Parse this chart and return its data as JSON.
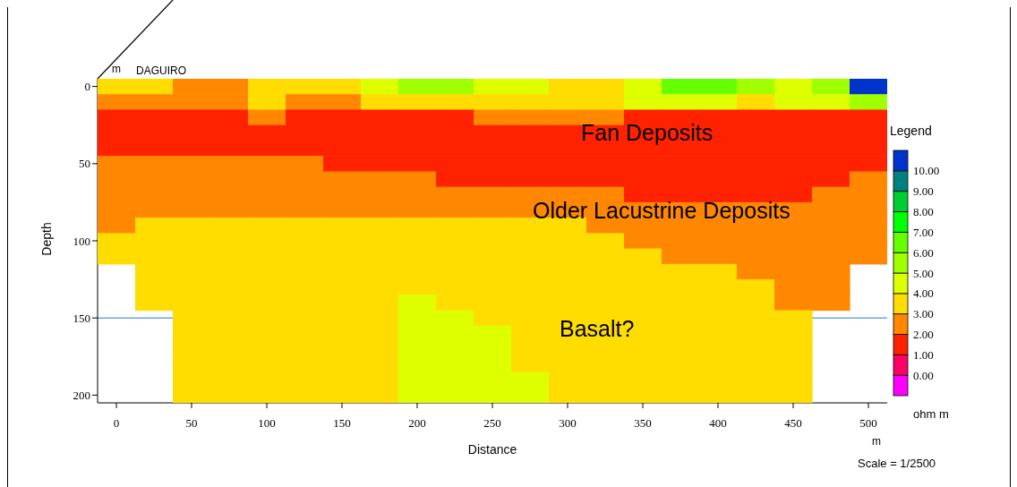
{
  "chart_data": {
    "type": "heatmap",
    "xlabel": "Distance",
    "ylabel": "Depth",
    "legend_title": "Legend",
    "clabel": "ohm m",
    "categories": [
      "0",
      null,
      "50",
      null,
      "100",
      null,
      "150",
      null,
      "200",
      null,
      "250",
      null,
      "300",
      null,
      "350",
      null,
      "400",
      null,
      "450",
      null,
      "500"
    ],
    "y_categories": [
      "0",
      null,
      null,
      null,
      null,
      "50",
      null,
      null,
      null,
      null,
      "100",
      null,
      null,
      null,
      null,
      "150",
      null,
      null,
      null,
      null,
      "200"
    ],
    "clim": [
      -1,
      11
    ],
    "cticks": [
      {
        "value": 0,
        "label": "0.00"
      },
      {
        "value": 1,
        "label": "1.00"
      },
      {
        "value": 2,
        "label": "2.00"
      },
      {
        "value": 3,
        "label": "3.00"
      },
      {
        "value": 4,
        "label": "4.00"
      },
      {
        "value": 5,
        "label": "5.00"
      },
      {
        "value": 6,
        "label": "6.00"
      },
      {
        "value": 7,
        "label": "7.00"
      },
      {
        "value": 8,
        "label": "8.00"
      },
      {
        "value": 9,
        "label": "9.00"
      },
      {
        "value": 10,
        "label": "10.00"
      }
    ],
    "colors": [
      "#ff00ff",
      "#ff0066",
      "#ff2200",
      "#ff8800",
      "#ffdd00",
      "#ddff00",
      "#a0ff00",
      "#66ff00",
      "#00ff00",
      "#00cc33",
      "#008080",
      "#0033cc"
    ],
    "cells": [
      [
        3.5,
        3.5,
        2.5,
        2.5,
        3.5,
        3.5,
        3.5,
        4.5,
        5.5,
        5.5,
        4.5,
        4.5,
        3.5,
        3.5,
        4.5,
        6.5,
        6.5,
        5.5,
        4.5,
        5.5,
        10.5
      ],
      [
        2.5,
        2.5,
        2.5,
        2.5,
        3.5,
        2.5,
        2.5,
        3.5,
        3.5,
        3.5,
        3.5,
        3.5,
        3.5,
        3.5,
        4.5,
        4.5,
        4.5,
        3.5,
        4.5,
        4.5,
        5.5
      ],
      [
        1.5,
        1.5,
        1.5,
        1.5,
        2.5,
        1.5,
        1.5,
        1.5,
        1.5,
        1.5,
        2.5,
        2.5,
        2.5,
        2.5,
        1.5,
        1.5,
        1.5,
        1.5,
        1.5,
        1.5,
        1.5
      ],
      [
        1.5,
        1.5,
        1.5,
        1.5,
        1.5,
        1.5,
        1.5,
        1.5,
        1.5,
        1.5,
        1.5,
        1.5,
        1.5,
        1.5,
        1.5,
        1.5,
        1.5,
        1.5,
        1.5,
        1.5,
        1.5
      ],
      [
        1.5,
        1.5,
        1.5,
        1.5,
        1.5,
        1.5,
        1.5,
        1.5,
        1.5,
        1.5,
        1.5,
        1.5,
        1.5,
        1.5,
        1.5,
        1.5,
        1.5,
        1.5,
        1.5,
        1.5,
        1.5
      ],
      [
        2.5,
        2.5,
        2.5,
        2.5,
        2.5,
        2.5,
        1.5,
        1.5,
        1.5,
        1.5,
        1.5,
        1.5,
        1.5,
        1.5,
        1.5,
        1.5,
        1.5,
        1.5,
        1.5,
        1.5,
        1.5
      ],
      [
        2.5,
        2.5,
        2.5,
        2.5,
        2.5,
        2.5,
        2.5,
        2.5,
        2.5,
        1.5,
        1.5,
        1.5,
        1.5,
        1.5,
        1.5,
        1.5,
        1.5,
        1.5,
        1.5,
        1.5,
        2.5
      ],
      [
        2.5,
        2.5,
        2.5,
        2.5,
        2.5,
        2.5,
        2.5,
        2.5,
        2.5,
        2.5,
        2.5,
        2.5,
        2.5,
        2.5,
        1.5,
        1.5,
        1.5,
        1.5,
        1.5,
        2.5,
        2.5
      ],
      [
        2.5,
        2.5,
        2.5,
        2.5,
        2.5,
        2.5,
        2.5,
        2.5,
        2.5,
        2.5,
        2.5,
        2.5,
        2.5,
        2.5,
        2.5,
        2.5,
        2.5,
        2.5,
        2.5,
        2.5,
        2.5
      ],
      [
        2.5,
        3.5,
        3.5,
        3.5,
        3.5,
        3.5,
        3.5,
        3.5,
        3.5,
        3.5,
        3.5,
        3.5,
        3.5,
        2.5,
        2.5,
        2.5,
        2.5,
        2.5,
        2.5,
        2.5,
        2.5
      ],
      [
        3.5,
        3.5,
        3.5,
        3.5,
        3.5,
        3.5,
        3.5,
        3.5,
        3.5,
        3.5,
        3.5,
        3.5,
        3.5,
        3.5,
        2.5,
        2.5,
        2.5,
        2.5,
        2.5,
        2.5,
        2.5
      ],
      [
        3.5,
        3.5,
        3.5,
        3.5,
        3.5,
        3.5,
        3.5,
        3.5,
        3.5,
        3.5,
        3.5,
        3.5,
        3.5,
        3.5,
        3.5,
        2.5,
        2.5,
        2.5,
        2.5,
        2.5,
        2.5
      ],
      [
        null,
        3.5,
        3.5,
        3.5,
        3.5,
        3.5,
        3.5,
        3.5,
        3.5,
        3.5,
        3.5,
        3.5,
        3.5,
        3.5,
        3.5,
        3.5,
        3.5,
        2.5,
        2.5,
        2.5,
        null
      ],
      [
        null,
        3.5,
        3.5,
        3.5,
        3.5,
        3.5,
        3.5,
        3.5,
        3.5,
        3.5,
        3.5,
        3.5,
        3.5,
        3.5,
        3.5,
        3.5,
        3.5,
        3.5,
        2.5,
        2.5,
        null
      ],
      [
        null,
        3.5,
        3.5,
        3.5,
        3.5,
        3.5,
        3.5,
        3.5,
        4.5,
        3.5,
        3.5,
        3.5,
        3.5,
        3.5,
        3.5,
        3.5,
        3.5,
        3.5,
        2.5,
        2.5,
        null
      ],
      [
        null,
        null,
        3.5,
        3.5,
        3.5,
        3.5,
        3.5,
        3.5,
        4.5,
        4.5,
        3.5,
        3.5,
        3.5,
        3.5,
        3.5,
        3.5,
        3.5,
        3.5,
        3.5,
        null,
        null
      ],
      [
        null,
        null,
        3.5,
        3.5,
        3.5,
        3.5,
        3.5,
        3.5,
        4.5,
        4.5,
        4.5,
        3.5,
        3.5,
        3.5,
        3.5,
        3.5,
        3.5,
        3.5,
        3.5,
        null,
        null
      ],
      [
        null,
        null,
        3.5,
        3.5,
        3.5,
        3.5,
        3.5,
        3.5,
        4.5,
        4.5,
        4.5,
        3.5,
        3.5,
        3.5,
        3.5,
        3.5,
        3.5,
        3.5,
        3.5,
        null,
        null
      ],
      [
        null,
        null,
        3.5,
        3.5,
        3.5,
        3.5,
        3.5,
        3.5,
        4.5,
        4.5,
        4.5,
        3.5,
        3.5,
        3.5,
        3.5,
        3.5,
        3.5,
        3.5,
        3.5,
        null,
        null
      ],
      [
        null,
        null,
        3.5,
        3.5,
        3.5,
        3.5,
        3.5,
        3.5,
        4.5,
        4.5,
        4.5,
        4.5,
        3.5,
        3.5,
        3.5,
        3.5,
        3.5,
        3.5,
        3.5,
        null,
        null
      ],
      [
        null,
        null,
        3.5,
        3.5,
        3.5,
        3.5,
        3.5,
        3.5,
        4.5,
        4.5,
        4.5,
        4.5,
        3.5,
        3.5,
        3.5,
        3.5,
        3.5,
        3.5,
        3.5,
        null,
        null
      ]
    ],
    "ref_lines": [
      {
        "axis": "y",
        "value": "150",
        "color": "#6fa8dc"
      }
    ],
    "annotations": [
      "DAGUIRO",
      "m",
      "m",
      "Scale = 1/2500",
      "Fan Deposits",
      "Older Lacustrine Deposits",
      "Basalt?"
    ]
  }
}
